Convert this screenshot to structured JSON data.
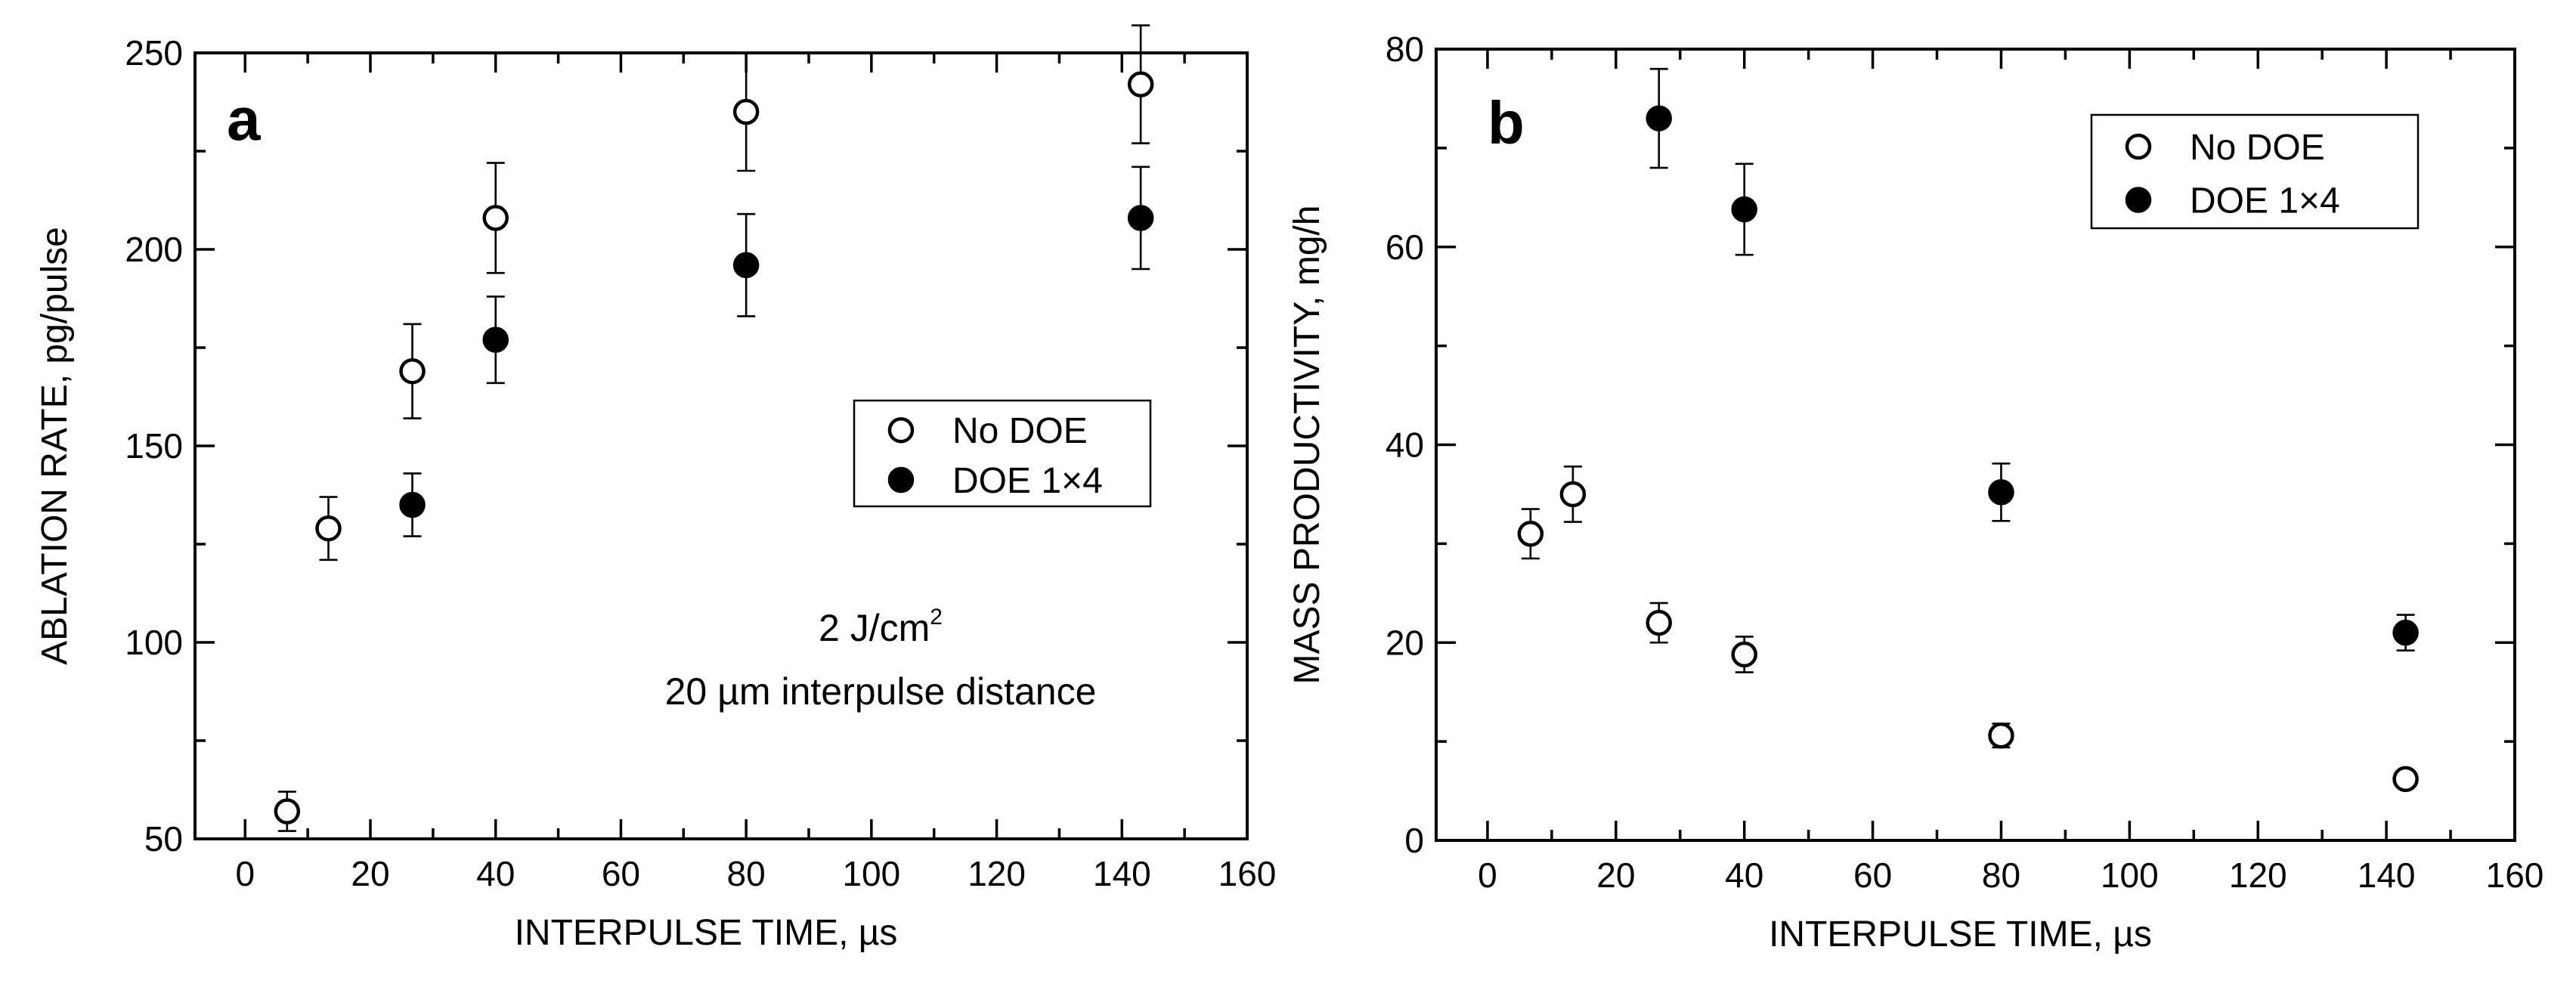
{
  "chart_data": [
    {
      "type": "scatter",
      "panel_label": "a",
      "title": "",
      "xlabel": "INTERPULSE TIME, µs",
      "ylabel": "ABLATION RATE, pg/pulse",
      "xlim": [
        -8,
        160
      ],
      "ylim": [
        50,
        250
      ],
      "xticks": [
        0,
        20,
        40,
        60,
        80,
        100,
        120,
        140,
        160
      ],
      "yticks": [
        50,
        100,
        150,
        200,
        250
      ],
      "grid": false,
      "legend_position": "center-right",
      "annotation": {
        "line1_prefix": "2 J/cm",
        "line1_sup": "2",
        "line2": "20 µm interpulse distance"
      },
      "series": [
        {
          "name": "No DOE",
          "marker": "open-circle",
          "points": [
            {
              "x": 6.7,
              "y": 57,
              "err": 5
            },
            {
              "x": 13.3,
              "y": 129,
              "err": 8
            },
            {
              "x": 26.7,
              "y": 169,
              "err": 12
            },
            {
              "x": 40,
              "y": 208,
              "err": 14
            },
            {
              "x": 80,
              "y": 235,
              "err": 15
            },
            {
              "x": 143,
              "y": 242,
              "err": 15
            }
          ]
        },
        {
          "name": "DOE 1×4",
          "marker": "filled-circle",
          "points": [
            {
              "x": 26.7,
              "y": 135,
              "err": 8
            },
            {
              "x": 40,
              "y": 177,
              "err": 11
            },
            {
              "x": 80,
              "y": 196,
              "err": 13
            },
            {
              "x": 143,
              "y": 208,
              "err": 13
            }
          ]
        }
      ]
    },
    {
      "type": "scatter",
      "panel_label": "b",
      "title": "",
      "xlabel": "INTERPULSE TIME, µs",
      "ylabel": "MASS PRODUCTIVITY, mg/h",
      "xlim": [
        -8,
        160
      ],
      "ylim": [
        0,
        80
      ],
      "xticks": [
        0,
        20,
        40,
        60,
        80,
        100,
        120,
        140,
        160
      ],
      "yticks": [
        0,
        20,
        40,
        60,
        80
      ],
      "grid": false,
      "legend_position": "top-right",
      "series": [
        {
          "name": "No DOE",
          "marker": "open-circle",
          "points": [
            {
              "x": 6.7,
              "y": 31,
              "err": 2.5
            },
            {
              "x": 13.3,
              "y": 35,
              "err": 2.8
            },
            {
              "x": 26.7,
              "y": 22,
              "err": 2
            },
            {
              "x": 40,
              "y": 18.8,
              "err": 1.8
            },
            {
              "x": 80,
              "y": 10.6,
              "err": 1.2
            },
            {
              "x": 143,
              "y": 6.2,
              "err": 0.8
            }
          ]
        },
        {
          "name": "DOE 1×4",
          "marker": "filled-circle",
          "points": [
            {
              "x": 26.7,
              "y": 73,
              "err": 5
            },
            {
              "x": 40,
              "y": 63.8,
              "err": 4.6
            },
            {
              "x": 80,
              "y": 35.2,
              "err": 2.9
            },
            {
              "x": 143,
              "y": 21,
              "err": 1.8
            }
          ]
        }
      ]
    }
  ]
}
